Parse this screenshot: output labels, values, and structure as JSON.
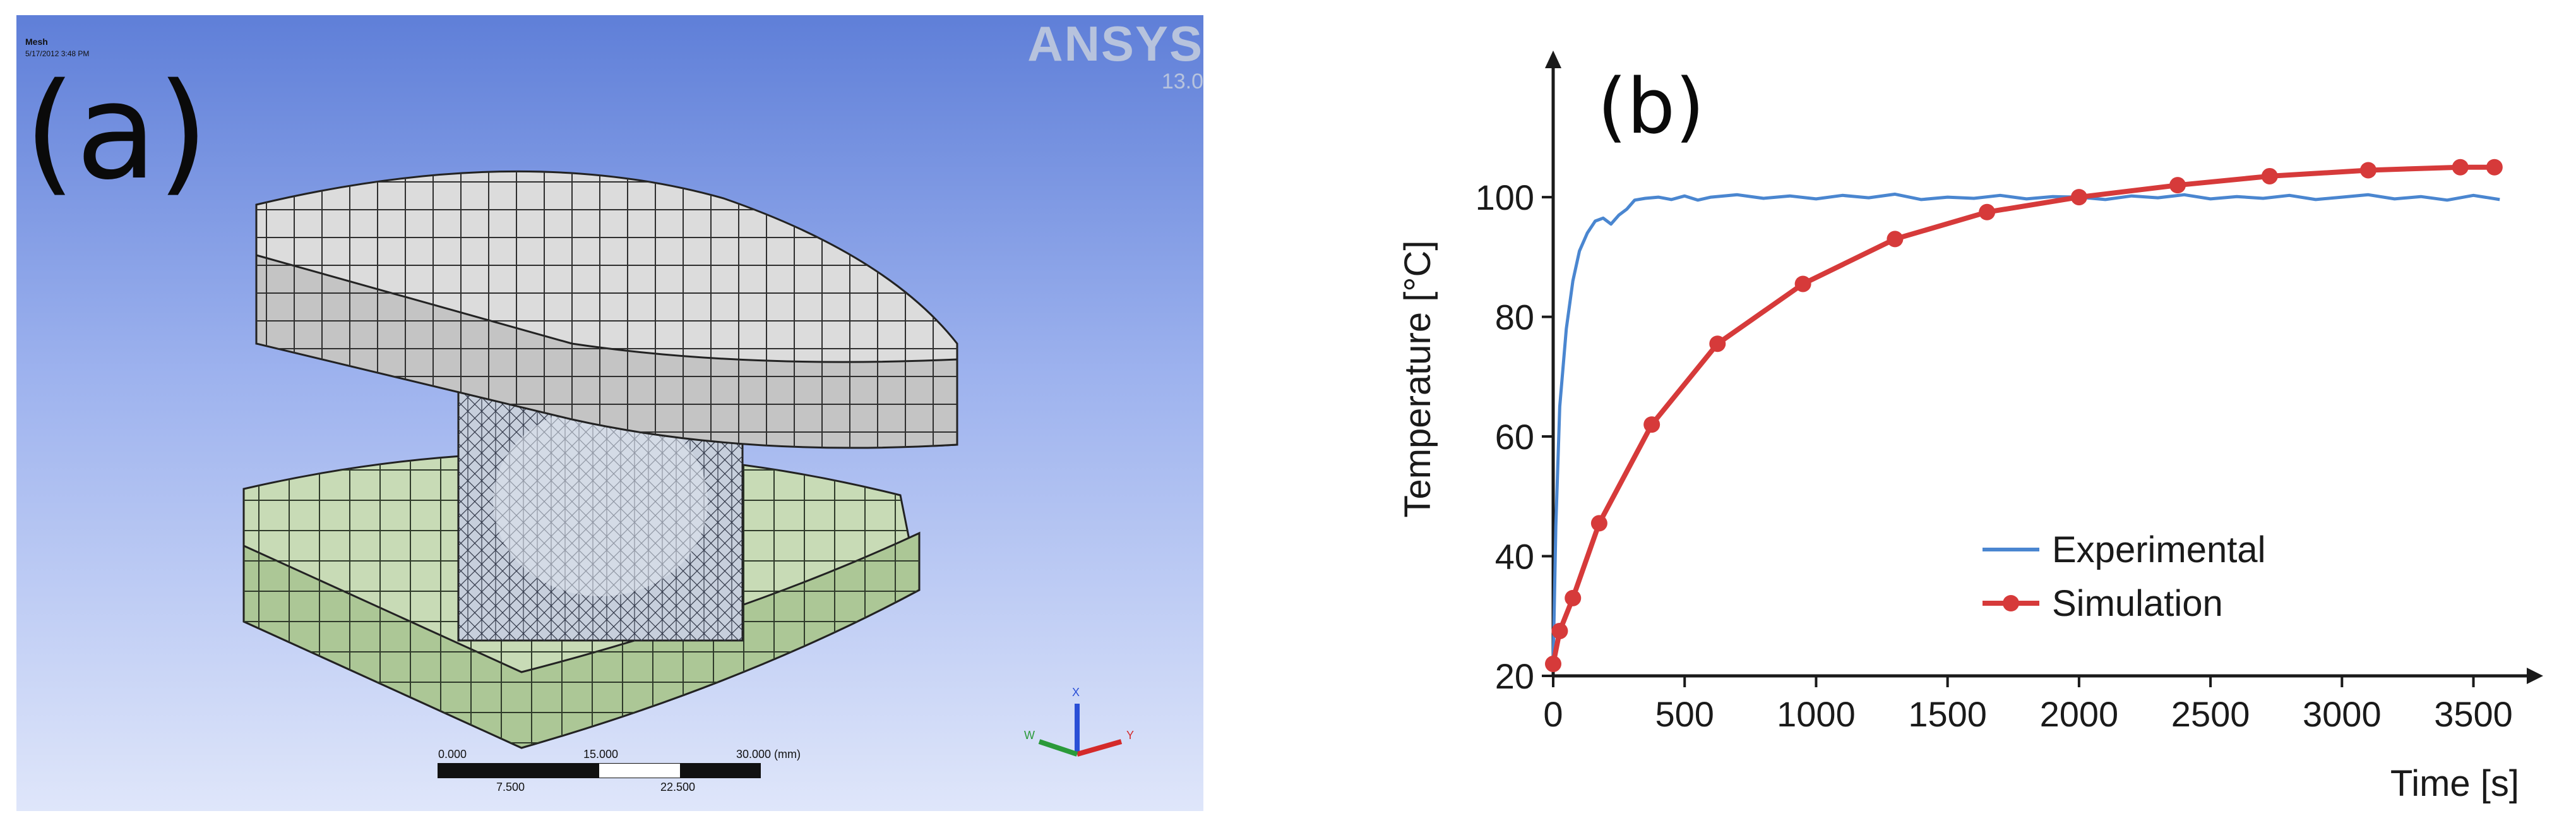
{
  "panel_a": {
    "letter": "(a)",
    "mesh_label": "Mesh",
    "mesh_date": "5/17/2012 3:48 PM",
    "logo": "ANSYS",
    "version": "13.0",
    "scale_top": [
      "0.000",
      "15.000",
      "30.000 (mm)"
    ],
    "scale_bottom": [
      "7.500",
      "22.500"
    ],
    "axes": [
      "X",
      "Y",
      "W"
    ],
    "colors": {
      "top_plate": "#d2d2d2",
      "bottom_plate": "#bcd3a8",
      "center_block": "#c7cfdc"
    }
  },
  "chart_data": {
    "type": "line",
    "panel_letter": "(b)",
    "xlabel": "Time [s]",
    "ylabel": "Temperature [°C]",
    "xlim": [
      0,
      3650
    ],
    "ylim": [
      20,
      115
    ],
    "xticks": [
      0,
      500,
      1000,
      1500,
      2000,
      2500,
      3000,
      3500
    ],
    "yticks": [
      20,
      40,
      60,
      80,
      100
    ],
    "grid": false,
    "legend": "center-right",
    "series": [
      {
        "name": "Experimental",
        "color": "#4a86d0",
        "marker": "none",
        "x": [
          0,
          10,
          25,
          50,
          75,
          100,
          130,
          160,
          190,
          220,
          250,
          280,
          310,
          350,
          400,
          450,
          500,
          550,
          600,
          700,
          800,
          900,
          1000,
          1100,
          1200,
          1300,
          1400,
          1500,
          1600,
          1700,
          1800,
          1900,
          2000,
          2100,
          2200,
          2300,
          2400,
          2500,
          2600,
          2700,
          2800,
          2900,
          3000,
          3100,
          3200,
          3300,
          3400,
          3500,
          3600
        ],
        "y": [
          22,
          45,
          65,
          78,
          86,
          91,
          94,
          96,
          96.5,
          95.5,
          97,
          98,
          99.5,
          99.8,
          100,
          99.6,
          100.2,
          99.5,
          100,
          100.4,
          99.8,
          100.2,
          99.7,
          100.3,
          99.9,
          100.5,
          99.6,
          100,
          99.8,
          100.3,
          99.7,
          100.1,
          100,
          99.6,
          100.2,
          99.9,
          100.4,
          99.7,
          100.1,
          99.8,
          100.3,
          99.6,
          100,
          100.4,
          99.7,
          100.1,
          99.5,
          100.3,
          99.6
        ]
      },
      {
        "name": "Simulation",
        "color": "#d63a3a",
        "marker": "circle",
        "x": [
          0,
          25,
          75,
          175,
          375,
          625,
          950,
          1300,
          1650,
          2000,
          2375,
          2725,
          3100,
          3450,
          3580
        ],
        "y": [
          22,
          27.5,
          33,
          45.5,
          62,
          75.5,
          85.5,
          93,
          97.5,
          100,
          102,
          103.5,
          104.5,
          105,
          105
        ]
      }
    ]
  }
}
